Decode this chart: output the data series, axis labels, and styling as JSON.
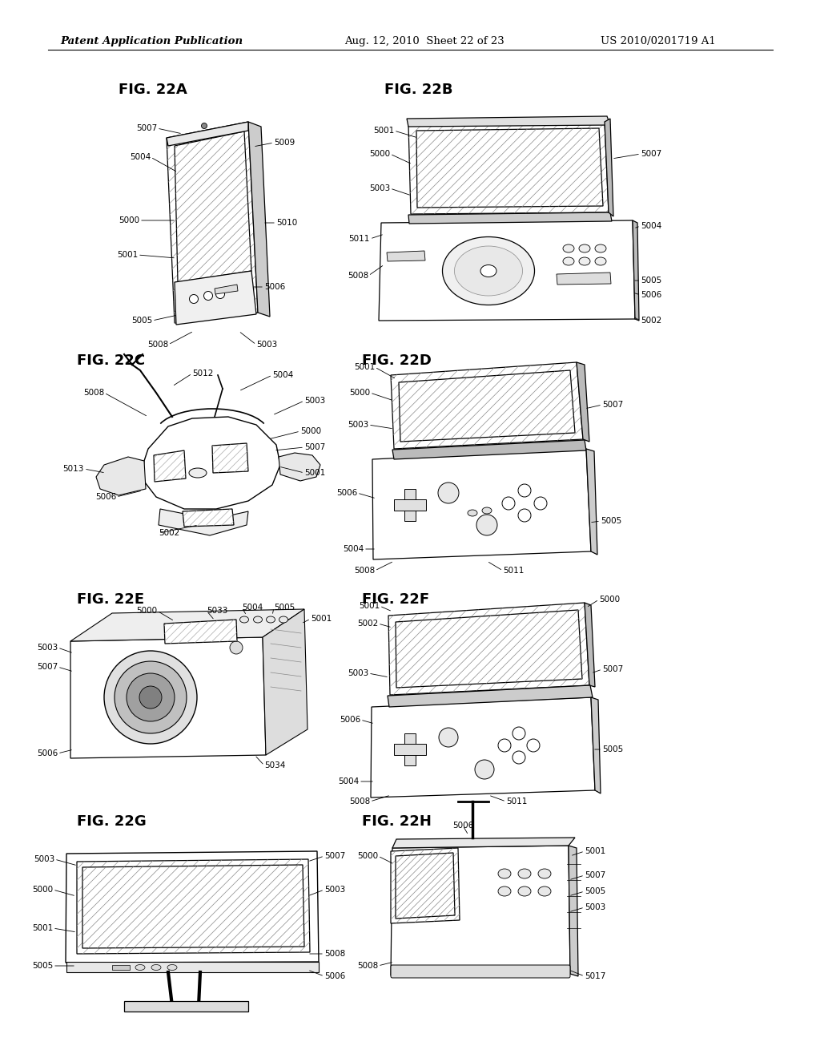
{
  "background_color": "#ffffff",
  "header_left": "Patent Application Publication",
  "header_center": "Aug. 12, 2010  Sheet 22 of 23",
  "header_right": "US 2010/0201719 A1",
  "header_fontsize": 9.5,
  "fig_label_fontsize": 13
}
